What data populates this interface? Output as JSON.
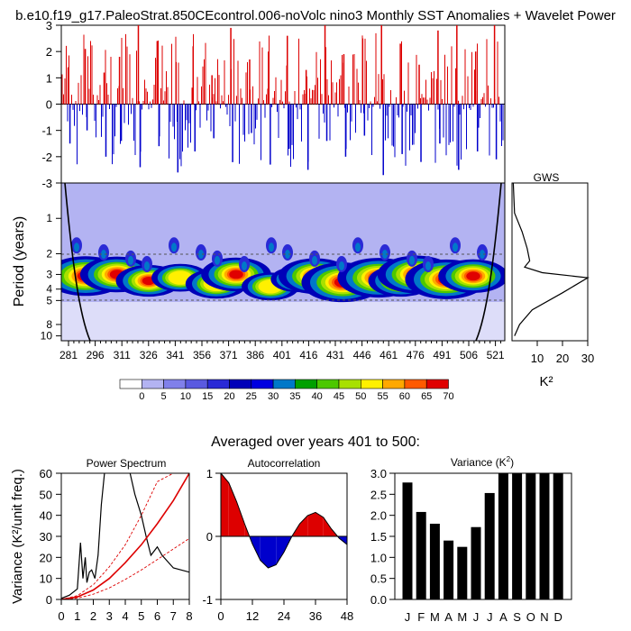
{
  "page_title": "b.e10.f19_g17.PaleoStrat.850CEcontrol.006-noVolc nino3 Monthly SST Anomalies + Wavelet Power",
  "colors": {
    "positive": "#dd0000",
    "negative": "#0000cc",
    "wavelet_background": "#b3b3f2",
    "frame": "#000000"
  },
  "chart_data": [
    {
      "id": "sst_anomalies",
      "type": "bar",
      "title": "",
      "xlabel": "",
      "ylabel": "",
      "ylim": [
        -3,
        3
      ],
      "yticks": [
        "3",
        "2",
        "1",
        "0",
        "-1",
        "-2",
        "-3"
      ],
      "xlim": [
        271,
        530
      ],
      "series": [
        {
          "x": 275,
          "values": [
            1.4,
            -1.5
          ]
        },
        {
          "x": 285,
          "values": [
            2.1,
            -1.0
          ]
        },
        {
          "x": 296,
          "values": [
            1.2,
            -2.0
          ]
        },
        {
          "x": 305,
          "values": [
            1.8,
            -1.4
          ]
        },
        {
          "x": 316,
          "values": [
            3.0,
            -2.4
          ]
        },
        {
          "x": 327,
          "values": [
            2.4,
            -1.6
          ]
        },
        {
          "x": 338,
          "values": [
            1.6,
            -2.6
          ]
        },
        {
          "x": 348,
          "values": [
            2.2,
            -1.8
          ]
        },
        {
          "x": 359,
          "values": [
            1.1,
            -1.3
          ]
        },
        {
          "x": 370,
          "values": [
            2.9,
            -2.2
          ]
        },
        {
          "x": 381,
          "values": [
            1.7,
            -1.1
          ]
        },
        {
          "x": 392,
          "values": [
            2.0,
            -2.3
          ]
        },
        {
          "x": 403,
          "values": [
            2.6,
            -1.7
          ]
        },
        {
          "x": 414,
          "values": [
            1.3,
            -2.5
          ]
        },
        {
          "x": 425,
          "values": [
            3.0,
            -1.4
          ]
        },
        {
          "x": 436,
          "values": [
            1.9,
            -2.0
          ]
        },
        {
          "x": 447,
          "values": [
            2.5,
            -1.2
          ]
        },
        {
          "x": 458,
          "values": [
            3.0,
            -2.7
          ]
        },
        {
          "x": 469,
          "values": [
            2.3,
            -1.9
          ]
        },
        {
          "x": 480,
          "values": [
            1.5,
            -2.2
          ]
        },
        {
          "x": 491,
          "values": [
            2.8,
            -1.5
          ]
        },
        {
          "x": 502,
          "values": [
            3.0,
            -2.5
          ]
        },
        {
          "x": 513,
          "values": [
            2.0,
            -1.8
          ]
        },
        {
          "x": 524,
          "values": [
            3.0,
            -2.1
          ]
        }
      ],
      "note": "representative sample of the dense monthly anomaly bars"
    },
    {
      "id": "wavelet_power",
      "type": "heatmap",
      "ylabel": "Period (years)",
      "ylog": true,
      "yticks": [
        "1",
        "2",
        "3",
        "4",
        "5",
        "8",
        "10"
      ],
      "xticks": [
        "281",
        "296",
        "311",
        "326",
        "341",
        "356",
        "371",
        "386",
        "401",
        "416",
        "431",
        "446",
        "461",
        "476",
        "491",
        "506",
        "521"
      ],
      "colorbar_levels": [
        "0",
        "5",
        "10",
        "15",
        "20",
        "25",
        "30",
        "35",
        "40",
        "45",
        "50",
        "55",
        "60",
        "65",
        "70"
      ],
      "colorbar_colors": [
        "#ffffff",
        "#b3b3f2",
        "#8080ea",
        "#5a5ae0",
        "#2a2ad6",
        "#0000b8",
        "#0000e0",
        "#0078c8",
        "#00a000",
        "#4cc800",
        "#a8e000",
        "#fff000",
        "#ffa800",
        "#ff5a00",
        "#e00000"
      ]
    },
    {
      "id": "gws",
      "type": "line",
      "title": "GWS",
      "xlabel": "K²",
      "xticks": [
        "10",
        "20",
        "30"
      ],
      "xlim": [
        0,
        30
      ],
      "ylog": true,
      "ylim": [
        0.5,
        10
      ],
      "x": [
        0.5,
        1.0,
        4.0,
        6.0,
        7.0,
        5.0,
        12.0,
        30.0,
        20.0,
        8.0,
        3.0,
        1.0
      ],
      "y": [
        0.5,
        0.9,
        1.3,
        1.8,
        2.3,
        2.6,
        2.9,
        3.2,
        4.3,
        6.0,
        8.0,
        10.0
      ]
    },
    {
      "id": "power_spectrum",
      "type": "line",
      "title": "Power Spectrum",
      "header": "Averaged over years 401 to 500:",
      "xlabel": "",
      "ylabel": "Variance (K²/unit freq.)",
      "xlim": [
        0,
        8
      ],
      "ylim": [
        0,
        60
      ],
      "xticks": [
        "0",
        "1",
        "2",
        "3",
        "4",
        "5",
        "6",
        "7",
        "8"
      ],
      "yticks": [
        "0",
        "10",
        "20",
        "30",
        "40",
        "50",
        "60"
      ],
      "series": [
        {
          "x": [
            0,
            0.5,
            1.0,
            1.2,
            1.35,
            1.5,
            1.6,
            1.75,
            1.9,
            2.1,
            2.3,
            2.5,
            2.7
          ],
          "values": [
            0.5,
            2,
            5,
            27,
            10,
            20,
            8,
            13,
            14,
            10,
            21,
            45,
            60
          ]
        },
        {
          "x": [
            4.3,
            4.6,
            5.0,
            5.3,
            5.6,
            6.0,
            6.3,
            7.0,
            8.0
          ],
          "values": [
            60,
            50,
            40,
            30,
            21,
            25,
            21,
            15,
            13
          ]
        },
        {
          "x": [
            0,
            1,
            2,
            3,
            4,
            5,
            6,
            7,
            8
          ],
          "values": [
            0,
            1.2,
            4.5,
            10,
            17.5,
            26,
            36,
            47,
            60
          ]
        },
        {
          "x": [
            0,
            1,
            2,
            3,
            4,
            5,
            6,
            7,
            8
          ],
          "values": [
            0,
            1.8,
            7,
            15.5,
            26,
            40,
            56,
            60,
            60
          ]
        },
        {
          "x": [
            0,
            1,
            2,
            3,
            4,
            5,
            6,
            7,
            8
          ],
          "values": [
            0,
            0.6,
            2.5,
            5.5,
            9.5,
            14,
            19,
            24,
            29
          ]
        }
      ]
    },
    {
      "id": "autocorrelation",
      "type": "area",
      "title": "Autocorrelation",
      "xlim": [
        0,
        48
      ],
      "ylim": [
        -1,
        1
      ],
      "xticks": [
        "0",
        "12",
        "24",
        "36",
        "48"
      ],
      "yticks": [
        "1",
        "0",
        "-1"
      ],
      "x": [
        0,
        3,
        6,
        9,
        12,
        15,
        18,
        21,
        24,
        27,
        30,
        33,
        36,
        39,
        42,
        45,
        48
      ],
      "values": [
        1.0,
        0.85,
        0.55,
        0.2,
        -0.12,
        -0.38,
        -0.5,
        -0.45,
        -0.25,
        0.0,
        0.2,
        0.33,
        0.38,
        0.3,
        0.12,
        -0.03,
        -0.13
      ]
    },
    {
      "id": "monthly_variance",
      "type": "bar",
      "title": "Variance (K²)",
      "categories": [
        "J",
        "F",
        "M",
        "A",
        "M",
        "J",
        "J",
        "A",
        "S",
        "O",
        "N",
        "D"
      ],
      "values": [
        2.78,
        2.08,
        1.8,
        1.4,
        1.25,
        1.72,
        2.53,
        3.0,
        3.0,
        3.0,
        3.0,
        3.0
      ],
      "ylim": [
        0,
        3
      ],
      "yticks": [
        "3.0",
        "2.5",
        "2.0",
        "1.5",
        "1.0",
        "0.5",
        "0.0"
      ]
    }
  ]
}
